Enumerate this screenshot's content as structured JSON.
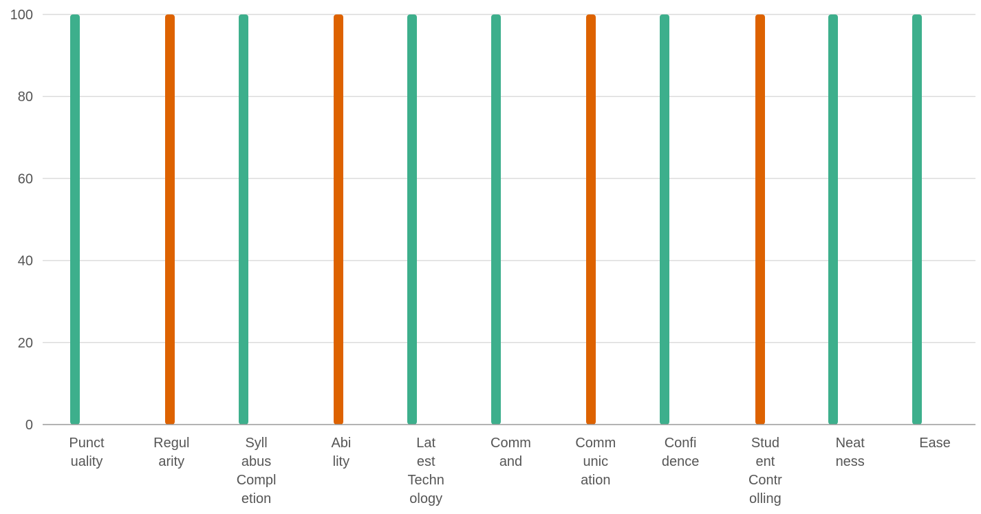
{
  "chart_data": {
    "type": "bar",
    "categories": [
      "Punctuality",
      "Regularity",
      "Syllabus Completion",
      "Ability",
      "Latest Technology",
      "Command",
      "Communication",
      "Confidence",
      "Student Controlling",
      "Neatness",
      "Ease"
    ],
    "category_label_lines": [
      [
        "Punct",
        "uality"
      ],
      [
        "Regul",
        "arity"
      ],
      [
        "Syll",
        "abus",
        "Compl",
        "etion"
      ],
      [
        "Abi",
        "lity"
      ],
      [
        "Lat",
        "est",
        "Techn",
        "ology"
      ],
      [
        "Comm",
        "and"
      ],
      [
        "Comm",
        "unic",
        "ation"
      ],
      [
        "Confi",
        "dence"
      ],
      [
        "Stud",
        "ent",
        "Contr",
        "olling"
      ],
      [
        "Neat",
        "ness"
      ],
      [
        "Ease"
      ]
    ],
    "values": [
      100,
      100,
      100,
      100,
      100,
      100,
      100,
      100,
      100,
      100,
      100
    ],
    "bar_colors": [
      "#3daf8c",
      "#dd6200",
      "#3daf8c",
      "#dd6200",
      "#3daf8c",
      "#3daf8c",
      "#dd6200",
      "#3daf8c",
      "#dd6200",
      "#3daf8c",
      "#3daf8c"
    ],
    "y_ticks": [
      "0",
      "20",
      "40",
      "60",
      "80",
      "100"
    ],
    "y_tick_values": [
      0,
      20,
      40,
      60,
      80,
      100
    ],
    "ylim": [
      0,
      100
    ],
    "title": "",
    "xlabel": "",
    "ylabel": "",
    "grid": true,
    "legend": "none"
  }
}
